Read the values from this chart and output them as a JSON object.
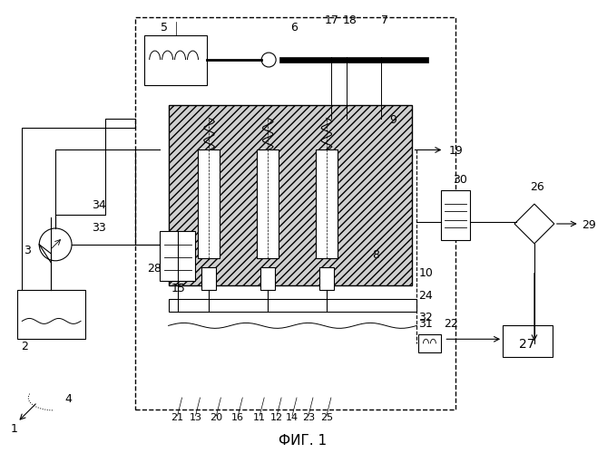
{
  "title": "ФИГ. 1",
  "bg_color": "#ffffff",
  "title_fontsize": 11,
  "fig_width": 6.69,
  "fig_height": 5.0,
  "dpi": 100
}
